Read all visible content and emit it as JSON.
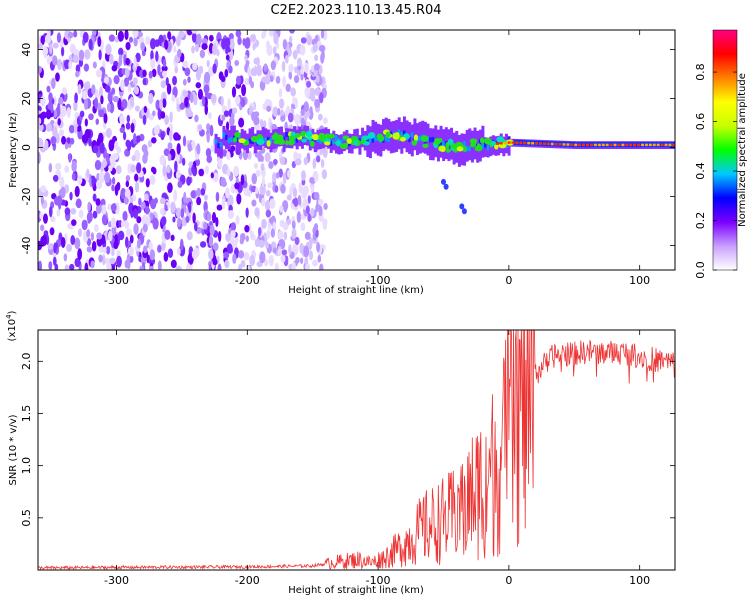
{
  "chart_data": [
    {
      "type": "heatmap",
      "title": "C2E2.2023.110.13.45.R04",
      "xlabel": "Height of straight line (km)",
      "ylabel": "Frequency (Hz)",
      "xlim": [
        -360,
        127
      ],
      "ylim": [
        -50,
        48
      ],
      "xticks": [
        -300,
        -200,
        -100,
        0,
        100
      ],
      "xtick_labels": [
        "-300",
        "-200",
        "-100",
        "0",
        "100"
      ],
      "yticks": [
        -40,
        -20,
        0,
        20,
        40
      ],
      "ytick_labels": [
        "-40",
        "-20",
        "0",
        "20",
        "40"
      ],
      "signal_band": [
        {
          "x": -220,
          "f": 4
        },
        {
          "x": -200,
          "f": 3
        },
        {
          "x": -160,
          "f": 4
        },
        {
          "x": -140,
          "f": 3
        },
        {
          "x": -120,
          "f": 2
        },
        {
          "x": -100,
          "f": 4
        },
        {
          "x": -80,
          "f": 5
        },
        {
          "x": -60,
          "f": 2
        },
        {
          "x": -40,
          "f": 0
        },
        {
          "x": -20,
          "f": 1
        },
        {
          "x": 0,
          "f": 2
        },
        {
          "x": 50,
          "f": 1
        },
        {
          "x": 127,
          "f": 1
        }
      ],
      "noise_region_x": [
        -360,
        -150
      ],
      "colorbar": {
        "label": "Normalized spectral amplitude",
        "range": [
          0.0,
          0.97
        ],
        "ticks": [
          0.0,
          0.2,
          0.4,
          0.6,
          0.8
        ],
        "tick_labels": [
          "0.0",
          "0.2",
          "0.4",
          "0.6",
          "0.8"
        ],
        "colors": [
          "#ffffff",
          "#c8a0ff",
          "#7a00ff",
          "#0000ff",
          "#00c8ff",
          "#00ff00",
          "#c8ff00",
          "#ffff00",
          "#ff8000",
          "#ff0000",
          "#ff0080"
        ]
      }
    },
    {
      "type": "line",
      "series": [
        {
          "name": "SNR",
          "color": "#ee3333",
          "points": [
            [
              -360,
              200
            ],
            [
              -300,
              250
            ],
            [
              -200,
              300
            ],
            [
              -150,
              400
            ],
            [
              -130,
              800
            ],
            [
              -115,
              1000
            ],
            [
              -105,
              700
            ],
            [
              -95,
              1200
            ],
            [
              -85,
              2000
            ],
            [
              -75,
              3000
            ],
            [
              -65,
              4000
            ],
            [
              -55,
              4500
            ],
            [
              -45,
              5000
            ],
            [
              -35,
              6000
            ],
            [
              -25,
              7500
            ],
            [
              -15,
              9000
            ],
            [
              -5,
              11000
            ],
            [
              0,
              13000
            ],
            [
              5,
              15000
            ],
            [
              10,
              16500
            ],
            [
              15,
              17500
            ],
            [
              20,
              18500
            ],
            [
              25,
              19500
            ],
            [
              35,
              20600
            ],
            [
              60,
              20900
            ],
            [
              90,
              20800
            ],
            [
              110,
              20200
            ],
            [
              127,
              19800
            ]
          ]
        }
      ],
      "xlabel": "Height of straight line (km)",
      "ylabel": "SNR (10 * v/v)",
      "yscale_label": "(x10",
      "yscale_exponent": "4",
      "yscale_label_close": ")",
      "xlim": [
        -360,
        127
      ],
      "ylim": [
        0,
        23000
      ],
      "xticks": [
        -300,
        -200,
        -100,
        0,
        100
      ],
      "xtick_labels": [
        "-300",
        "-200",
        "-100",
        "0",
        "100"
      ],
      "yticks": [
        5000,
        10000,
        15000,
        20000
      ],
      "ytick_labels": [
        "0.5",
        "1.0",
        "1.5",
        "2.0"
      ]
    }
  ]
}
